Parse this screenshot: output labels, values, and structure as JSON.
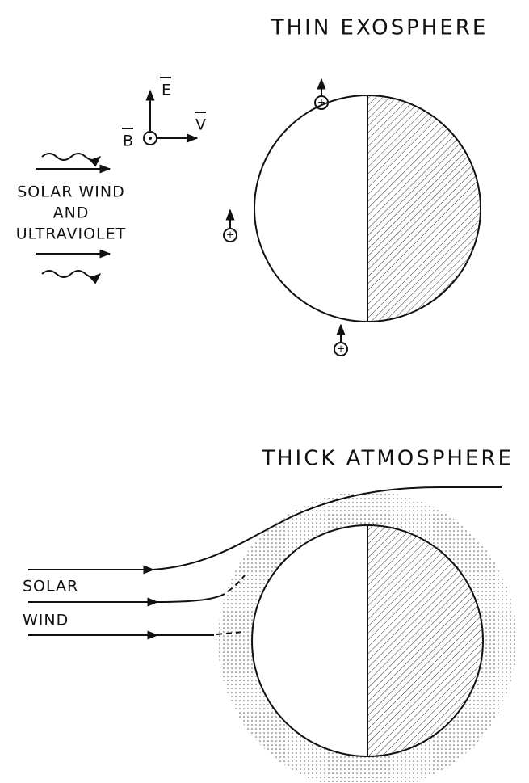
{
  "panels": [
    {
      "title": "THIN EXOSPHERE",
      "vectors": {
        "E": "E",
        "B": "B",
        "V": "V"
      },
      "labels": [
        "SOLAR WIND",
        "AND",
        "ULTRAVIOLET"
      ]
    },
    {
      "title": "THICK ATMOSPHERE",
      "labels": [
        "SOLAR",
        "WIND"
      ]
    }
  ]
}
